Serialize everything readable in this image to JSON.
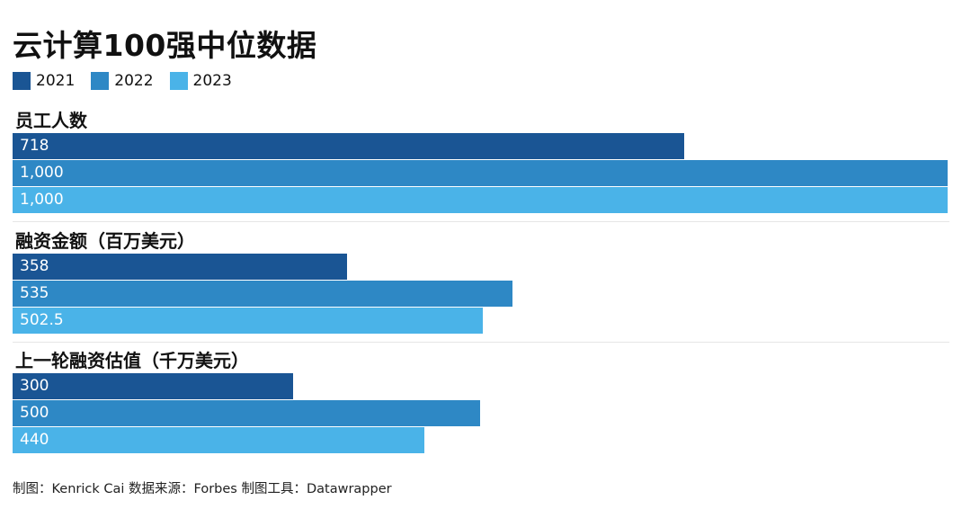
{
  "title": "云计算100强中位数据",
  "legend": [
    "2021",
    "2022",
    "2023"
  ],
  "colors": [
    "#1a5594",
    "#2e88c5",
    "#4ab3e8"
  ],
  "chart_data": {
    "type": "bar",
    "orientation": "horizontal",
    "layout": "small-multiples",
    "series_names": [
      "2021",
      "2022",
      "2023"
    ],
    "panels": [
      {
        "title": "员工人数",
        "values": [
          718,
          1000,
          1000
        ],
        "labels": [
          "718",
          "1,000",
          "1,000"
        ],
        "xlim": [
          0,
          1000
        ]
      },
      {
        "title": "融资金额（百万美元）",
        "values": [
          358,
          535,
          502.5
        ],
        "labels": [
          "358",
          "535",
          "502.5"
        ],
        "xlim": [
          0,
          1000
        ]
      },
      {
        "title": "上一轮融资估值（千万美元）",
        "values": [
          300,
          500,
          440
        ],
        "labels": [
          "300",
          "500",
          "440"
        ],
        "xlim": [
          0,
          1000
        ]
      }
    ],
    "legend_position": "top-left",
    "grid": false
  },
  "footer": "制图：Kenrick Cai   数据来源：Forbes  制图工具：Datawrapper"
}
